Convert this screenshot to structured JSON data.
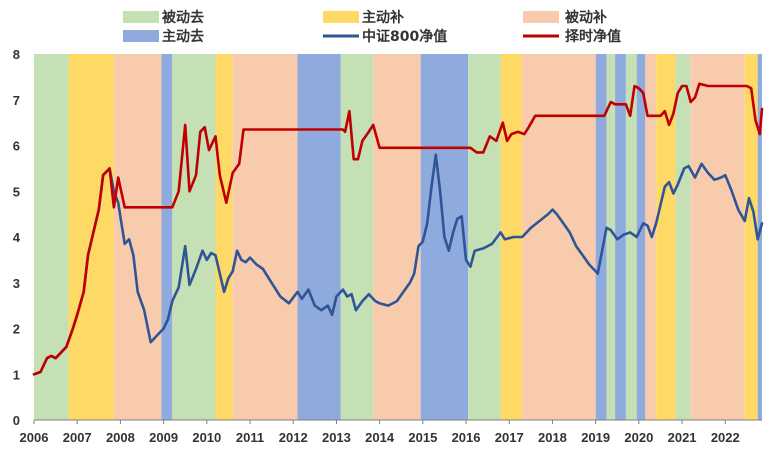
{
  "chart_data": {
    "type": "line",
    "title": "",
    "xlabel": "",
    "ylabel": "",
    "xlim": [
      2006.0,
      2022.85
    ],
    "ylim": [
      0,
      8
    ],
    "y_ticks": [
      0,
      1,
      2,
      3,
      4,
      5,
      6,
      7,
      8
    ],
    "x_ticks": [
      "2006",
      "2007",
      "2008",
      "2009",
      "2010",
      "2011",
      "2012",
      "2013",
      "2014",
      "2015",
      "2016",
      "2017",
      "2018",
      "2019",
      "2020",
      "2021",
      "2022"
    ],
    "x_tick_values": [
      2006,
      2007,
      2008,
      2009,
      2010,
      2011,
      2012,
      2013,
      2014,
      2015,
      2016,
      2017,
      2018,
      2019,
      2020,
      2021,
      2022
    ],
    "grid": false,
    "legend": {
      "placement": "top",
      "entries": [
        {
          "label": "被动去",
          "kind": "band",
          "color": "#c5e0b4"
        },
        {
          "label": "主动补",
          "kind": "band",
          "color": "#ffd966"
        },
        {
          "label": "被动补",
          "kind": "band",
          "color": "#f8cbad"
        },
        {
          "label": "主动去",
          "kind": "band",
          "color": "#8faadc"
        },
        {
          "label": "中证800净值",
          "kind": "line",
          "color": "#2f5597"
        },
        {
          "label": "择时净值",
          "kind": "line",
          "color": "#c00000"
        }
      ]
    },
    "regimes": [
      {
        "start": 2006.0,
        "end": 2006.8,
        "phase": "被动去"
      },
      {
        "start": 2006.8,
        "end": 2007.85,
        "phase": "主动补"
      },
      {
        "start": 2007.85,
        "end": 2008.95,
        "phase": "被动补"
      },
      {
        "start": 2008.95,
        "end": 2009.2,
        "phase": "主动去"
      },
      {
        "start": 2009.2,
        "end": 2010.2,
        "phase": "被动去"
      },
      {
        "start": 2010.2,
        "end": 2010.6,
        "phase": "主动补"
      },
      {
        "start": 2010.6,
        "end": 2012.1,
        "phase": "被动补"
      },
      {
        "start": 2012.1,
        "end": 2013.1,
        "phase": "主动去"
      },
      {
        "start": 2013.1,
        "end": 2013.85,
        "phase": "被动去"
      },
      {
        "start": 2013.85,
        "end": 2014.95,
        "phase": "被动补"
      },
      {
        "start": 2014.95,
        "end": 2016.05,
        "phase": "主动去"
      },
      {
        "start": 2016.05,
        "end": 2016.8,
        "phase": "被动去"
      },
      {
        "start": 2016.8,
        "end": 2017.3,
        "phase": "主动补"
      },
      {
        "start": 2017.3,
        "end": 2019.0,
        "phase": "被动补"
      },
      {
        "start": 2019.0,
        "end": 2019.25,
        "phase": "主动去"
      },
      {
        "start": 2019.25,
        "end": 2019.45,
        "phase": "被动去"
      },
      {
        "start": 2019.45,
        "end": 2019.7,
        "phase": "主动去"
      },
      {
        "start": 2019.7,
        "end": 2019.95,
        "phase": "被动去"
      },
      {
        "start": 2019.95,
        "end": 2020.15,
        "phase": "主动去"
      },
      {
        "start": 2020.15,
        "end": 2020.4,
        "phase": "被动补"
      },
      {
        "start": 2020.4,
        "end": 2020.85,
        "phase": "主动补"
      },
      {
        "start": 2020.85,
        "end": 2021.2,
        "phase": "被动去"
      },
      {
        "start": 2021.2,
        "end": 2022.45,
        "phase": "被动补"
      },
      {
        "start": 2022.45,
        "end": 2022.75,
        "phase": "主动补"
      },
      {
        "start": 2022.75,
        "end": 2022.85,
        "phase": "主动去"
      }
    ],
    "series": [
      {
        "name": "中证800净值",
        "color": "#2f5597",
        "x": [
          2006.0,
          2006.15,
          2006.3,
          2006.4,
          2006.5,
          2006.6,
          2006.75,
          2006.9,
          2007.0,
          2007.15,
          2007.25,
          2007.35,
          2007.5,
          2007.6,
          2007.75,
          2007.85,
          2007.95,
          2008.1,
          2008.2,
          2008.3,
          2008.4,
          2008.55,
          2008.7,
          2008.85,
          2009.0,
          2009.1,
          2009.2,
          2009.35,
          2009.5,
          2009.6,
          2009.75,
          2009.9,
          2010.0,
          2010.1,
          2010.2,
          2010.3,
          2010.4,
          2010.5,
          2010.6,
          2010.7,
          2010.8,
          2010.9,
          2011.0,
          2011.15,
          2011.3,
          2011.5,
          2011.7,
          2011.9,
          2012.1,
          2012.2,
          2012.35,
          2012.5,
          2012.65,
          2012.8,
          2012.9,
          2013.0,
          2013.15,
          2013.25,
          2013.35,
          2013.45,
          2013.6,
          2013.75,
          2013.9,
          2014.0,
          2014.2,
          2014.4,
          2014.55,
          2014.7,
          2014.8,
          2014.9,
          2015.0,
          2015.1,
          2015.2,
          2015.3,
          2015.4,
          2015.5,
          2015.6,
          2015.7,
          2015.8,
          2015.9,
          2016.0,
          2016.1,
          2016.2,
          2016.4,
          2016.6,
          2016.8,
          2016.9,
          2017.1,
          2017.3,
          2017.5,
          2017.7,
          2017.9,
          2018.0,
          2018.1,
          2018.25,
          2018.4,
          2018.55,
          2018.7,
          2018.85,
          2018.95,
          2019.05,
          2019.15,
          2019.25,
          2019.35,
          2019.5,
          2019.65,
          2019.8,
          2019.95,
          2020.1,
          2020.2,
          2020.3,
          2020.4,
          2020.5,
          2020.6,
          2020.7,
          2020.8,
          2020.9,
          2021.05,
          2021.15,
          2021.3,
          2021.45,
          2021.6,
          2021.75,
          2021.9,
          2022.0,
          2022.15,
          2022.3,
          2022.45,
          2022.55,
          2022.65,
          2022.75,
          2022.85
        ],
        "y": [
          1.0,
          1.05,
          1.35,
          1.4,
          1.35,
          1.45,
          1.6,
          2.0,
          2.3,
          2.8,
          3.6,
          4.0,
          4.6,
          5.35,
          5.5,
          5.0,
          4.75,
          3.85,
          3.95,
          3.6,
          2.8,
          2.4,
          1.7,
          1.85,
          2.0,
          2.2,
          2.6,
          2.9,
          3.8,
          2.95,
          3.3,
          3.7,
          3.5,
          3.65,
          3.6,
          3.2,
          2.8,
          3.1,
          3.25,
          3.7,
          3.5,
          3.45,
          3.55,
          3.4,
          3.3,
          3.0,
          2.7,
          2.55,
          2.8,
          2.65,
          2.85,
          2.5,
          2.4,
          2.5,
          2.3,
          2.7,
          2.85,
          2.7,
          2.75,
          2.4,
          2.6,
          2.75,
          2.6,
          2.55,
          2.5,
          2.6,
          2.8,
          3.0,
          3.2,
          3.8,
          3.9,
          4.3,
          5.1,
          5.8,
          5.0,
          4.0,
          3.7,
          4.1,
          4.4,
          4.45,
          3.5,
          3.35,
          3.7,
          3.75,
          3.85,
          4.1,
          3.95,
          4.0,
          4.0,
          4.2,
          4.35,
          4.5,
          4.6,
          4.5,
          4.3,
          4.1,
          3.8,
          3.6,
          3.4,
          3.3,
          3.2,
          3.7,
          4.2,
          4.15,
          3.95,
          4.05,
          4.1,
          4.0,
          4.3,
          4.25,
          4.0,
          4.3,
          4.7,
          5.1,
          5.2,
          4.95,
          5.15,
          5.5,
          5.55,
          5.3,
          5.6,
          5.4,
          5.25,
          5.3,
          5.35,
          5.0,
          4.6,
          4.35,
          4.85,
          4.55,
          3.95,
          4.3
        ]
      },
      {
        "name": "择时净值",
        "color": "#c00000",
        "x": [
          2006.0,
          2006.15,
          2006.3,
          2006.4,
          2006.5,
          2006.6,
          2006.75,
          2006.9,
          2007.0,
          2007.15,
          2007.25,
          2007.35,
          2007.5,
          2007.6,
          2007.75,
          2007.85,
          2007.95,
          2008.1,
          2008.5,
          2009.0,
          2009.2,
          2009.35,
          2009.5,
          2009.6,
          2009.75,
          2009.85,
          2009.95,
          2010.05,
          2010.2,
          2010.3,
          2010.45,
          2010.6,
          2010.75,
          2010.85,
          2011.0,
          2011.5,
          2012.0,
          2012.5,
          2013.0,
          2013.15,
          2013.2,
          2013.3,
          2013.4,
          2013.5,
          2013.6,
          2013.75,
          2013.85,
          2014.0,
          2014.5,
          2015.0,
          2015.5,
          2016.0,
          2016.1,
          2016.25,
          2016.4,
          2016.55,
          2016.7,
          2016.85,
          2016.95,
          2017.05,
          2017.2,
          2017.35,
          2017.45,
          2017.6,
          2018.0,
          2018.5,
          2018.9,
          2019.1,
          2019.2,
          2019.35,
          2019.45,
          2019.6,
          2019.7,
          2019.8,
          2019.9,
          2020.0,
          2020.1,
          2020.2,
          2020.3,
          2020.4,
          2020.5,
          2020.6,
          2020.7,
          2020.8,
          2020.9,
          2021.0,
          2021.1,
          2021.2,
          2021.3,
          2021.4,
          2021.6,
          2021.8,
          2022.0,
          2022.2,
          2022.4,
          2022.5,
          2022.6,
          2022.7,
          2022.8,
          2022.85
        ],
        "y": [
          1.0,
          1.05,
          1.35,
          1.4,
          1.35,
          1.45,
          1.6,
          2.0,
          2.3,
          2.8,
          3.6,
          4.0,
          4.6,
          5.35,
          5.5,
          4.65,
          5.3,
          4.65,
          4.65,
          4.65,
          4.65,
          5.0,
          6.45,
          5.0,
          5.35,
          6.3,
          6.4,
          5.9,
          6.2,
          5.35,
          4.75,
          5.4,
          5.6,
          6.35,
          6.35,
          6.35,
          6.35,
          6.35,
          6.35,
          6.35,
          6.3,
          6.75,
          5.7,
          5.7,
          6.1,
          6.3,
          6.45,
          5.95,
          5.95,
          5.95,
          5.95,
          5.95,
          5.95,
          5.85,
          5.85,
          6.2,
          6.1,
          6.5,
          6.1,
          6.25,
          6.3,
          6.25,
          6.4,
          6.65,
          6.65,
          6.65,
          6.65,
          6.65,
          6.65,
          6.95,
          6.9,
          6.9,
          6.9,
          6.65,
          7.3,
          7.25,
          7.15,
          6.65,
          6.65,
          6.65,
          6.65,
          6.75,
          6.45,
          6.7,
          7.15,
          7.3,
          7.3,
          6.95,
          7.05,
          7.35,
          7.3,
          7.3,
          7.3,
          7.3,
          7.3,
          7.3,
          7.25,
          6.55,
          6.25,
          6.8
        ]
      }
    ]
  }
}
